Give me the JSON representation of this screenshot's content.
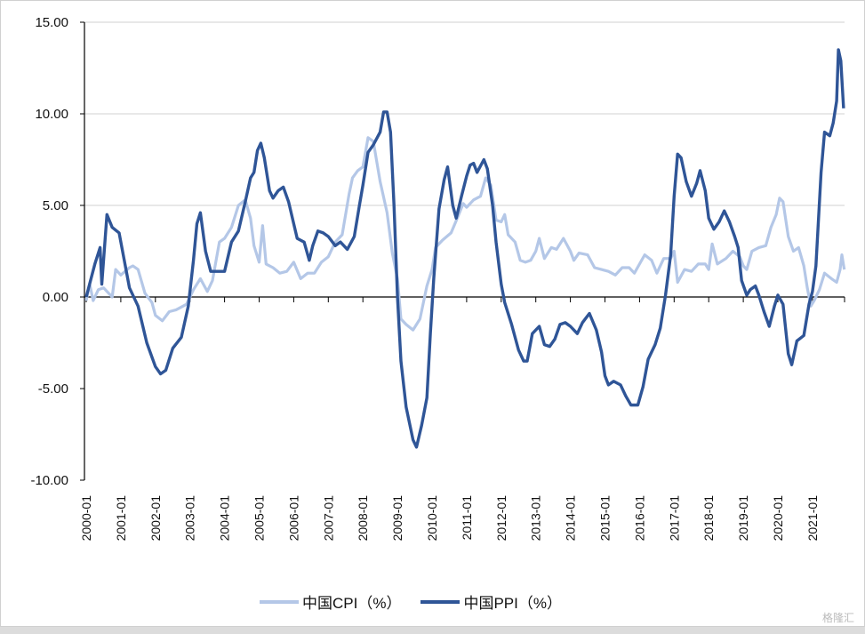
{
  "chart_data": {
    "type": "line",
    "title": "",
    "xlabel": "",
    "ylabel": "",
    "ylim": [
      -10,
      15
    ],
    "yticks": [
      "-10.00",
      "-5.00",
      "0.00",
      "5.00",
      "10.00",
      "15.00"
    ],
    "ytick_values": [
      -10,
      -5,
      0,
      5,
      10,
      15
    ],
    "xlim": [
      2000.0,
      2021.95
    ],
    "xticks": [
      "2000-01",
      "2001-01",
      "2002-01",
      "2003-01",
      "2004-01",
      "2005-01",
      "2006-01",
      "2007-01",
      "2008-01",
      "2009-01",
      "2010-01",
      "2011-01",
      "2012-01",
      "2013-01",
      "2014-01",
      "2015-01",
      "2016-01",
      "2017-01",
      "2018-01",
      "2019-01",
      "2020-01",
      "2021-01"
    ],
    "grid": "horizontal",
    "legend_position": "bottom",
    "series": [
      {
        "name": "中国CPI（%）",
        "color": "#b4c7e7",
        "x": [
          2000.0,
          2000.1,
          2000.2,
          2000.35,
          2000.5,
          2000.75,
          2000.85,
          2001.0,
          2001.25,
          2001.35,
          2001.5,
          2001.7,
          2001.9,
          2002.0,
          2002.2,
          2002.4,
          2002.6,
          2002.9,
          2003.1,
          2003.3,
          2003.5,
          2003.65,
          2003.85,
          2004.0,
          2004.2,
          2004.4,
          2004.6,
          2004.75,
          2004.85,
          2005.0,
          2005.1,
          2005.2,
          2005.4,
          2005.6,
          2005.8,
          2006.0,
          2006.2,
          2006.4,
          2006.6,
          2006.8,
          2007.0,
          2007.2,
          2007.4,
          2007.6,
          2007.7,
          2007.85,
          2008.0,
          2008.15,
          2008.3,
          2008.5,
          2008.7,
          2008.85,
          2009.0,
          2009.1,
          2009.25,
          2009.45,
          2009.65,
          2009.85,
          2010.0,
          2010.1,
          2010.3,
          2010.55,
          2010.75,
          2010.9,
          2011.0,
          2011.2,
          2011.4,
          2011.55,
          2011.7,
          2011.85,
          2012.0,
          2012.1,
          2012.2,
          2012.4,
          2012.55,
          2012.7,
          2012.85,
          2013.0,
          2013.1,
          2013.25,
          2013.45,
          2013.6,
          2013.8,
          2014.0,
          2014.1,
          2014.25,
          2014.5,
          2014.7,
          2014.9,
          2015.1,
          2015.3,
          2015.5,
          2015.7,
          2015.85,
          2016.0,
          2016.15,
          2016.35,
          2016.5,
          2016.7,
          2016.9,
          2017.0,
          2017.1,
          2017.3,
          2017.5,
          2017.7,
          2017.9,
          2018.0,
          2018.1,
          2018.25,
          2018.5,
          2018.7,
          2018.9,
          2019.0,
          2019.1,
          2019.25,
          2019.45,
          2019.65,
          2019.8,
          2019.95,
          2020.05,
          2020.15,
          2020.3,
          2020.45,
          2020.6,
          2020.75,
          2020.85,
          2020.95,
          2021.05,
          2021.2,
          2021.35,
          2021.55,
          2021.7,
          2021.8,
          2021.85,
          2021.92
        ],
        "y": [
          -0.2,
          0.7,
          -0.2,
          0.4,
          0.5,
          0.0,
          1.5,
          1.2,
          1.6,
          1.7,
          1.5,
          0.2,
          -0.3,
          -1.0,
          -1.3,
          -0.8,
          -0.7,
          -0.4,
          0.4,
          1.0,
          0.3,
          0.9,
          3.0,
          3.2,
          3.8,
          5.0,
          5.3,
          4.3,
          2.8,
          1.9,
          3.9,
          1.8,
          1.6,
          1.3,
          1.4,
          1.9,
          1.0,
          1.3,
          1.3,
          1.9,
          2.2,
          3.0,
          3.4,
          5.6,
          6.5,
          6.9,
          7.1,
          8.7,
          8.5,
          6.3,
          4.6,
          2.4,
          1.0,
          -1.2,
          -1.5,
          -1.8,
          -1.2,
          0.6,
          1.5,
          2.7,
          3.1,
          3.5,
          4.4,
          5.1,
          4.9,
          5.3,
          5.5,
          6.5,
          6.1,
          4.2,
          4.1,
          4.5,
          3.4,
          3.0,
          2.0,
          1.9,
          2.0,
          2.5,
          3.2,
          2.1,
          2.7,
          2.6,
          3.2,
          2.5,
          2.0,
          2.4,
          2.3,
          1.6,
          1.5,
          1.4,
          1.2,
          1.6,
          1.6,
          1.3,
          1.8,
          2.3,
          2.0,
          1.3,
          2.1,
          2.1,
          2.5,
          0.8,
          1.5,
          1.4,
          1.8,
          1.8,
          1.5,
          2.9,
          1.8,
          2.1,
          2.5,
          2.2,
          1.7,
          1.5,
          2.5,
          2.7,
          2.8,
          3.8,
          4.5,
          5.4,
          5.2,
          3.3,
          2.5,
          2.7,
          1.7,
          0.5,
          -0.5,
          -0.2,
          0.4,
          1.3,
          1.0,
          0.8,
          1.5,
          2.3,
          1.5
        ]
      },
      {
        "name": "中国PPI（%）",
        "color": "#2f5597",
        "x": [
          2000.0,
          2000.25,
          2000.4,
          2000.45,
          2000.6,
          2000.75,
          2000.95,
          2001.1,
          2001.25,
          2001.5,
          2001.75,
          2002.0,
          2002.15,
          2002.3,
          2002.5,
          2002.75,
          2002.95,
          2003.1,
          2003.2,
          2003.3,
          2003.45,
          2003.6,
          2003.75,
          2004.0,
          2004.2,
          2004.4,
          2004.6,
          2004.75,
          2004.85,
          2004.95,
          2005.05,
          2005.15,
          2005.3,
          2005.4,
          2005.55,
          2005.7,
          2005.85,
          2006.0,
          2006.1,
          2006.3,
          2006.45,
          2006.55,
          2006.7,
          2006.85,
          2007.0,
          2007.2,
          2007.35,
          2007.55,
          2007.75,
          2007.9,
          2008.0,
          2008.15,
          2008.3,
          2008.5,
          2008.6,
          2008.7,
          2008.8,
          2008.9,
          2009.0,
          2009.1,
          2009.25,
          2009.45,
          2009.55,
          2009.7,
          2009.85,
          2009.95,
          2010.05,
          2010.2,
          2010.35,
          2010.45,
          2010.6,
          2010.7,
          2010.85,
          2011.0,
          2011.1,
          2011.2,
          2011.3,
          2011.5,
          2011.6,
          2011.75,
          2011.85,
          2012.0,
          2012.1,
          2012.3,
          2012.5,
          2012.65,
          2012.75,
          2012.9,
          2013.1,
          2013.25,
          2013.4,
          2013.55,
          2013.7,
          2013.85,
          2014.0,
          2014.2,
          2014.35,
          2014.55,
          2014.75,
          2014.9,
          2015.0,
          2015.1,
          2015.25,
          2015.45,
          2015.6,
          2015.75,
          2015.95,
          2016.1,
          2016.25,
          2016.45,
          2016.6,
          2016.75,
          2016.9,
          2017.0,
          2017.1,
          2017.2,
          2017.35,
          2017.5,
          2017.65,
          2017.75,
          2017.9,
          2018.0,
          2018.15,
          2018.3,
          2018.45,
          2018.6,
          2018.75,
          2018.85,
          2018.95,
          2019.1,
          2019.2,
          2019.35,
          2019.45,
          2019.6,
          2019.75,
          2019.9,
          2020.0,
          2020.15,
          2020.3,
          2020.4,
          2020.55,
          2020.75,
          2020.9,
          2021.0,
          2021.1,
          2021.25,
          2021.35,
          2021.5,
          2021.6,
          2021.7,
          2021.75,
          2021.82,
          2021.9
        ],
        "y": [
          0.0,
          1.8,
          2.7,
          0.7,
          4.5,
          3.8,
          3.5,
          2.0,
          0.5,
          -0.5,
          -2.5,
          -3.8,
          -4.2,
          -4.0,
          -2.8,
          -2.2,
          -0.5,
          2.0,
          4.0,
          4.6,
          2.5,
          1.4,
          1.4,
          1.4,
          3.0,
          3.6,
          5.2,
          6.5,
          6.8,
          8.0,
          8.4,
          7.6,
          5.8,
          5.4,
          5.8,
          6.0,
          5.2,
          4.0,
          3.2,
          3.0,
          2.0,
          2.8,
          3.6,
          3.5,
          3.3,
          2.8,
          3.0,
          2.6,
          3.3,
          5.0,
          6.1,
          7.9,
          8.3,
          9.0,
          10.1,
          10.1,
          9.0,
          5.0,
          0.0,
          -3.5,
          -6.0,
          -7.8,
          -8.2,
          -7.0,
          -5.5,
          -2.0,
          1.0,
          4.8,
          6.4,
          7.1,
          5.0,
          4.3,
          5.5,
          6.6,
          7.2,
          7.3,
          6.8,
          7.5,
          7.0,
          5.0,
          3.0,
          0.7,
          -0.3,
          -1.5,
          -2.9,
          -3.5,
          -3.5,
          -2.0,
          -1.6,
          -2.6,
          -2.7,
          -2.3,
          -1.5,
          -1.4,
          -1.6,
          -2.0,
          -1.4,
          -0.9,
          -1.8,
          -3.0,
          -4.3,
          -4.8,
          -4.6,
          -4.8,
          -5.4,
          -5.9,
          -5.9,
          -4.9,
          -3.4,
          -2.6,
          -1.7,
          0.1,
          2.3,
          5.5,
          7.8,
          7.6,
          6.3,
          5.5,
          6.2,
          6.9,
          5.8,
          4.3,
          3.7,
          4.1,
          4.7,
          4.1,
          3.3,
          2.7,
          0.9,
          0.1,
          0.4,
          0.6,
          0.1,
          -0.8,
          -1.6,
          -0.5,
          0.1,
          -0.4,
          -3.1,
          -3.7,
          -2.4,
          -2.1,
          -0.4,
          0.3,
          1.7,
          6.8,
          9.0,
          8.8,
          9.5,
          10.7,
          13.5,
          12.9,
          10.3
        ]
      }
    ]
  },
  "legend": {
    "cpi_label": "中国CPI（%）",
    "ppi_label": "中国PPI（%）"
  },
  "watermark": "格隆汇"
}
